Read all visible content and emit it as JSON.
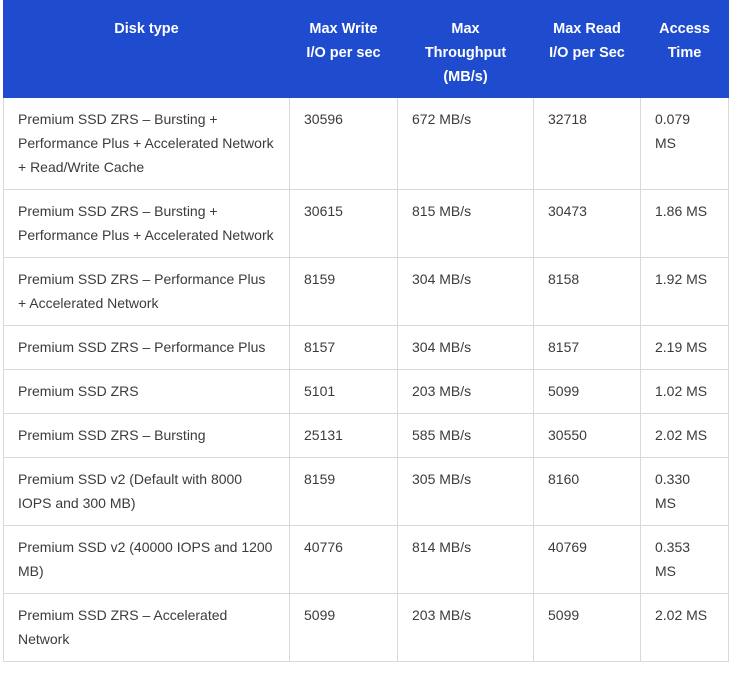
{
  "table": {
    "headers": [
      "Disk type",
      "Max Write I/O per sec",
      "Max Throughput (MB/s)",
      "Max Read I/O per Sec",
      "Access Time"
    ],
    "header_lines": [
      [
        "Disk type"
      ],
      [
        "Max Write",
        "I/O per sec"
      ],
      [
        "Max",
        "Throughput",
        "(MB/s)"
      ],
      [
        "Max Read",
        "I/O per Sec"
      ],
      [
        "Access",
        "Time"
      ]
    ],
    "rows": [
      [
        "Premium SSD ZRS – Bursting + Performance Plus + Accelerated Network + Read/Write Cache",
        "30596",
        "672 MB/s",
        "32718",
        "0.079 MS"
      ],
      [
        "Premium SSD ZRS – Bursting + Performance Plus + Accelerated Network",
        "30615",
        "815 MB/s",
        "30473",
        "1.86 MS"
      ],
      [
        "Premium SSD ZRS – Performance Plus + Accelerated Network",
        "8159",
        "304 MB/s",
        "8158",
        "1.92 MS"
      ],
      [
        "Premium SSD ZRS – Performance Plus",
        "8157",
        "304 MB/s",
        "8157",
        "2.19 MS"
      ],
      [
        "Premium SSD ZRS",
        "5101",
        "203 MB/s",
        "5099",
        "1.02 MS"
      ],
      [
        "Premium SSD ZRS – Bursting",
        "25131",
        "585 MB/s",
        "30550",
        "2.02 MS"
      ],
      [
        "Premium SSD v2 (Default with 8000 IOPS and 300 MB)",
        "8159",
        "305 MB/s",
        "8160",
        "0.330 MS"
      ],
      [
        "Premium SSD v2 (40000 IOPS and 1200 MB)",
        "40776",
        "814 MB/s",
        "40769",
        "0.353 MS"
      ],
      [
        "Premium SSD ZRS – Accelerated Network",
        "5099",
        "203 MB/s",
        "5099",
        "2.02 MS"
      ]
    ]
  },
  "colors": {
    "header_bg": "#1f4ccf",
    "header_text": "#ffffff",
    "border": "#d9d9d9",
    "body_text": "#3b3b3b"
  }
}
